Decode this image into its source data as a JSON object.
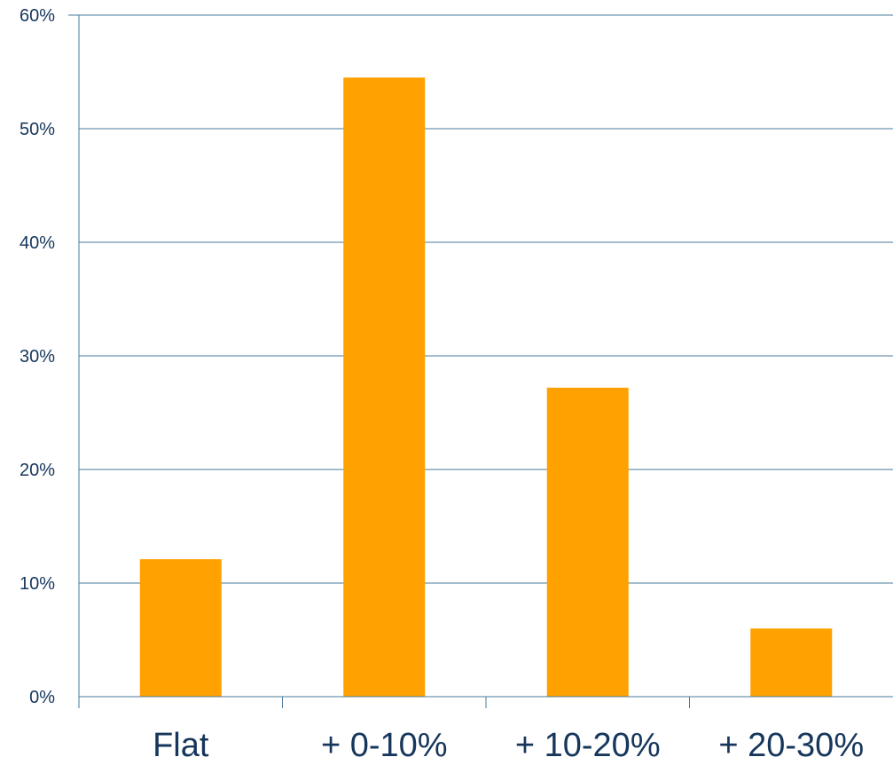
{
  "chart_data": {
    "type": "bar",
    "categories": [
      "Flat",
      "+ 0-10%",
      "+ 10-20%",
      "+ 20-30%"
    ],
    "values": [
      12.1,
      54.5,
      27.2,
      6.0
    ],
    "ylim": [
      0,
      60
    ],
    "y_ticks": [
      "0%",
      "10%",
      "20%",
      "30%",
      "40%",
      "50%",
      "60%"
    ],
    "y_unit": "%",
    "grid": true,
    "legend": "none",
    "colors": {
      "bar": "#FFA100",
      "grid": "#4A7B9D",
      "axis": "#4A7B9D",
      "text": "#16365C"
    }
  }
}
